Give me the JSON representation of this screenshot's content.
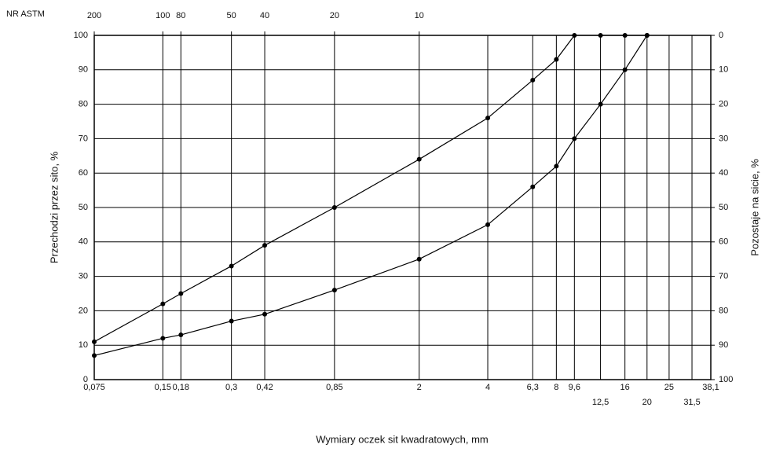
{
  "chart_data": {
    "type": "line",
    "top_axis_label": "NR ASTM",
    "xlabel": "Wymiary oczek sit kwadratowych, mm",
    "ylabel": "Przechodzi przez sito, %",
    "y2label": "Pozostaje na sicie, %",
    "xscale": "log",
    "xlim": [
      0.075,
      38.1
    ],
    "ylim": [
      0,
      100
    ],
    "y2lim": [
      100,
      0
    ],
    "yticks": [
      0,
      10,
      20,
      30,
      40,
      50,
      60,
      70,
      80,
      90,
      100
    ],
    "y2ticks": [
      0,
      10,
      20,
      30,
      40,
      50,
      60,
      70,
      80,
      90,
      100
    ],
    "xticks": [
      {
        "value": 0.075,
        "label": "0,075"
      },
      {
        "value": 0.15,
        "label": "0,15"
      },
      {
        "value": 0.18,
        "label": "0,18"
      },
      {
        "value": 0.3,
        "label": "0,3"
      },
      {
        "value": 0.42,
        "label": "0,42"
      },
      {
        "value": 0.85,
        "label": "0,85"
      },
      2,
      4,
      {
        "value": 6.3,
        "label": "6,3"
      },
      8,
      {
        "value": 9.6,
        "label": "9,6"
      },
      16,
      25,
      {
        "value": 38.1,
        "label": "38,1"
      }
    ],
    "xticks_lower": [
      {
        "value": 12.5,
        "label": "12,5"
      },
      20,
      {
        "value": 31.5,
        "label": "31,5"
      }
    ],
    "top_ticks": [
      {
        "value": 0.075,
        "label": "200"
      },
      {
        "value": 0.15,
        "label": "100"
      },
      {
        "value": 0.18,
        "label": "80"
      },
      {
        "value": 0.3,
        "label": "50"
      },
      {
        "value": 0.42,
        "label": "40"
      },
      {
        "value": 0.85,
        "label": "20"
      },
      {
        "value": 2,
        "label": "10"
      }
    ],
    "grid": true,
    "x": [
      0.075,
      0.15,
      0.18,
      0.3,
      0.42,
      0.85,
      2,
      4,
      6.3,
      8,
      9.6,
      12.5,
      16,
      20
    ],
    "series": [
      {
        "color": "#000000",
        "values": [
          11,
          22,
          25,
          33,
          39,
          50,
          64,
          76,
          87,
          93,
          100,
          100,
          100,
          100
        ]
      },
      {
        "color": "#000000",
        "values": [
          7,
          12,
          13,
          17,
          19,
          26,
          35,
          45,
          56,
          62,
          70,
          80,
          90,
          100
        ]
      }
    ]
  }
}
